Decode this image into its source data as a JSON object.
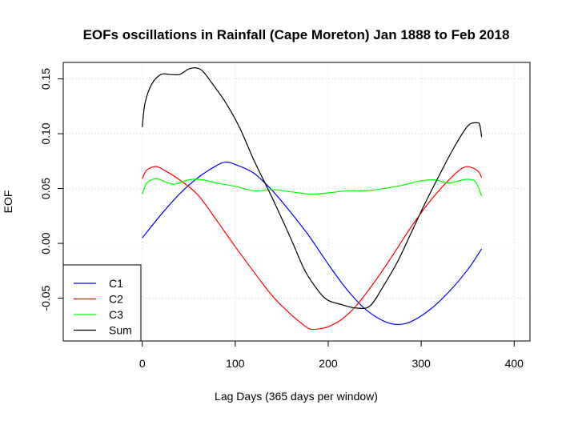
{
  "chart_data": {
    "type": "line",
    "title": "EOFs oscillations in Rainfall (Cape Moreton) Jan 1888 to Feb 2018",
    "xlabel": "Lag Days (365 days per window)",
    "ylabel": "EOF",
    "xlim": [
      -85,
      417
    ],
    "ylim": [
      -0.089,
      0.165
    ],
    "xticks": [
      0,
      100,
      200,
      300,
      400
    ],
    "xtick_labels": [
      "0",
      "100",
      "200",
      "300",
      "400"
    ],
    "yticks": [
      -0.05,
      0.0,
      0.05,
      0.1,
      0.15
    ],
    "ytick_labels": [
      "-0.05",
      "0.00",
      "0.05",
      "0.10",
      "0.15"
    ],
    "grid": true,
    "legend": "bottom-left",
    "series": [
      {
        "name": "C1",
        "color": "#0000ff",
        "x": [
          0,
          20,
          40,
          60,
          80,
          90,
          100,
          120,
          140,
          160,
          180,
          200,
          220,
          240,
          260,
          275,
          290,
          310,
          330,
          350,
          365
        ],
        "y": [
          0.005,
          0.026,
          0.045,
          0.06,
          0.071,
          0.074,
          0.072,
          0.064,
          0.048,
          0.028,
          0.006,
          -0.019,
          -0.042,
          -0.06,
          -0.071,
          -0.074,
          -0.071,
          -0.06,
          -0.044,
          -0.024,
          -0.005
        ]
      },
      {
        "name": "C2",
        "color": "#ff0000",
        "x": [
          0,
          5,
          15,
          25,
          40,
          60,
          80,
          100,
          120,
          140,
          160,
          170,
          180,
          190,
          200,
          215,
          230,
          250,
          270,
          290,
          310,
          330,
          345,
          355,
          362,
          365
        ],
        "y": [
          0.059,
          0.067,
          0.07,
          0.066,
          0.058,
          0.044,
          0.021,
          -0.003,
          -0.026,
          -0.048,
          -0.065,
          -0.072,
          -0.078,
          -0.078,
          -0.076,
          -0.069,
          -0.057,
          -0.035,
          -0.01,
          0.016,
          0.039,
          0.058,
          0.069,
          0.069,
          0.065,
          0.06
        ]
      },
      {
        "name": "C3",
        "color": "#00ff00",
        "x": [
          0,
          5,
          15,
          25,
          35,
          50,
          65,
          80,
          100,
          120,
          140,
          160,
          180,
          200,
          220,
          240,
          260,
          280,
          300,
          315,
          330,
          345,
          355,
          360,
          365
        ],
        "y": [
          0.045,
          0.055,
          0.059,
          0.056,
          0.054,
          0.058,
          0.058,
          0.055,
          0.052,
          0.048,
          0.049,
          0.047,
          0.045,
          0.046,
          0.048,
          0.048,
          0.05,
          0.053,
          0.057,
          0.058,
          0.055,
          0.058,
          0.058,
          0.054,
          0.043
        ]
      },
      {
        "name": "Sum",
        "color": "#000000",
        "x": [
          0,
          3,
          10,
          20,
          30,
          40,
          50,
          58,
          65,
          75,
          90,
          105,
          120,
          140,
          160,
          175,
          190,
          200,
          215,
          230,
          245,
          260,
          275,
          290,
          305,
          320,
          335,
          350,
          360,
          363,
          365
        ],
        "y": [
          0.106,
          0.128,
          0.145,
          0.154,
          0.154,
          0.154,
          0.159,
          0.16,
          0.157,
          0.146,
          0.128,
          0.105,
          0.076,
          0.041,
          0.004,
          -0.025,
          -0.044,
          -0.052,
          -0.056,
          -0.059,
          -0.057,
          -0.038,
          -0.016,
          0.011,
          0.038,
          0.063,
          0.087,
          0.107,
          0.11,
          0.108,
          0.097
        ]
      }
    ]
  }
}
